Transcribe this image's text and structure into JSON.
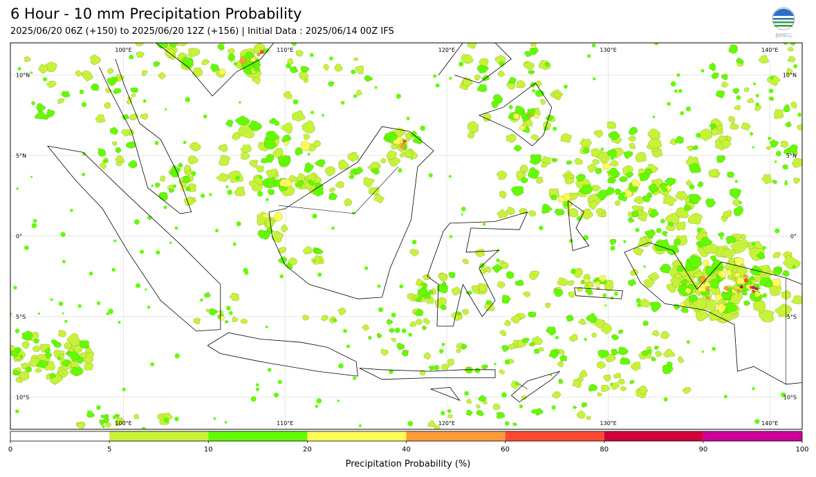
{
  "header": {
    "title": "6 Hour - 10 mm Precipitation Probability",
    "subtitle": "2025/06/20 06Z (+150) to 2025/06/20 12Z (+156) | Initial Data : 2025/06/14 00Z IFS",
    "logo_text": "BMKG"
  },
  "map": {
    "lon_range": [
      93,
      142
    ],
    "lat_range": [
      -12,
      12
    ],
    "lon_labels": [
      "100°E",
      "110°E",
      "120°E",
      "130°E",
      "140°E"
    ],
    "lon_values": [
      100,
      110,
      120,
      130,
      140
    ],
    "lat_labels": [
      "10°N",
      "5°N",
      "0°",
      "5°S",
      "10°S"
    ],
    "lat_values": [
      10,
      5,
      0,
      -5,
      -10
    ],
    "colors": {
      "5-10": "#c7f23a",
      "10-20": "#62fb00",
      "20-40": "#fffb5a",
      "40-60": "#ff9b39",
      "60-80": "#ff4a31",
      "80-90": "#d0003b",
      "90-100": "#cc0099",
      "coast": "#000000"
    }
  },
  "colorbar": {
    "label": "Precipitation Probability (%)",
    "ticks": [
      "0",
      "5",
      "10",
      "20",
      "40",
      "60",
      "80",
      "90",
      "100"
    ],
    "colors": [
      "#ffffff",
      "#c7f23a",
      "#62fb00",
      "#fffb5a",
      "#ff9b39",
      "#ff4a31",
      "#d0003b",
      "#cc0099"
    ]
  }
}
